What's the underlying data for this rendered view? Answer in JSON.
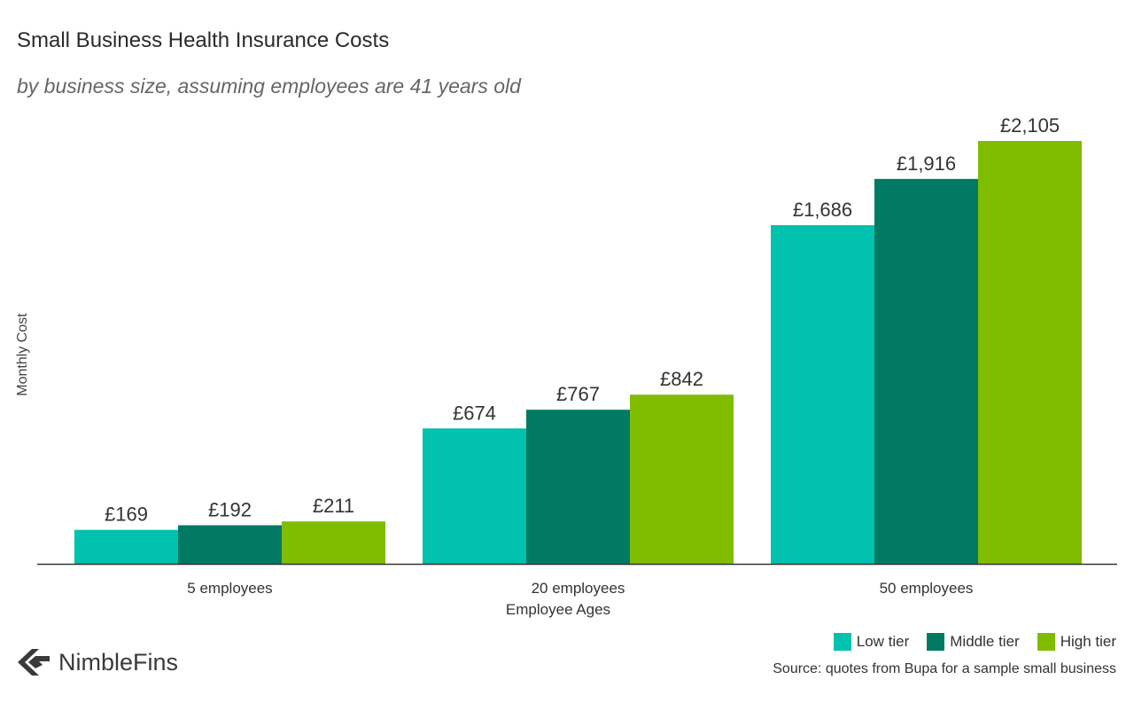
{
  "chart_data": {
    "type": "bar",
    "title": "Small Business Health Insurance Costs",
    "subtitle": "by business size, assuming employees are 41 years old",
    "ylabel": "Monthly Cost",
    "xlabel": "Employee Ages",
    "categories": [
      "5 employees",
      "20 employees",
      "50 employees"
    ],
    "series": [
      {
        "name": "Low tier",
        "color": "#00C2AE",
        "values": [
          169,
          674,
          1686
        ],
        "labels": [
          "£169",
          "£674",
          "£1,686"
        ]
      },
      {
        "name": "Middle tier",
        "color": "#007A63",
        "values": [
          192,
          767,
          1916
        ],
        "labels": [
          "£192",
          "£767",
          "£1,916"
        ]
      },
      {
        "name": "High tier",
        "color": "#80BC00",
        "values": [
          211,
          842,
          2105
        ],
        "labels": [
          "£211",
          "£842",
          "£2,105"
        ]
      }
    ],
    "ylim": [
      0,
      2105
    ],
    "grid": false,
    "legend_position": "bottom-right"
  },
  "source": "Source: quotes from Bupa for a sample small business",
  "logo": {
    "text": "NimbleFins"
  }
}
